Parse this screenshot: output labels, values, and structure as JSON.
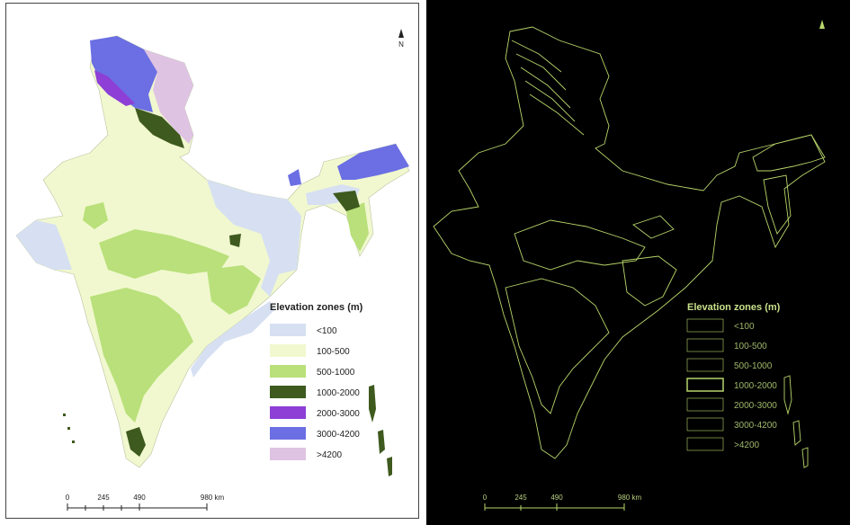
{
  "legend": {
    "title": "Elevation zones (m)",
    "items": [
      {
        "label": "<100",
        "color": "#d6e0f2"
      },
      {
        "label": "100-500",
        "color": "#f1f8cf"
      },
      {
        "label": "500-1000",
        "color": "#b9e07a"
      },
      {
        "label": "1000-2000",
        "color": "#3e5a1e"
      },
      {
        "label": "2000-3000",
        "color": "#8d3fd6"
      },
      {
        "label": "3000-4200",
        "color": "#6b6fe3"
      },
      {
        "label": ">4200",
        "color": "#dfc3e3"
      }
    ]
  },
  "scale_bar": {
    "ticks": [
      "0",
      "245",
      "490",
      "980 km"
    ]
  },
  "north_arrow": {
    "label": "N"
  },
  "edge_map": {
    "stroke_color": "#b8d66a"
  }
}
